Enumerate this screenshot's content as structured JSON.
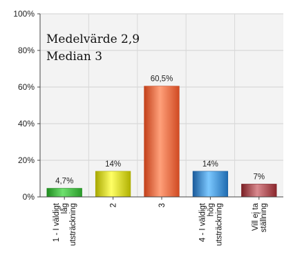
{
  "chart_data": {
    "type": "bar",
    "title": "",
    "xlabel": "",
    "ylabel": "",
    "ylim": [
      0,
      100
    ],
    "yticks": [
      "0%",
      "20%",
      "40%",
      "60%",
      "80%",
      "100%"
    ],
    "grid": true,
    "annotations": [
      "Medelvärde 2,9",
      "Median 3"
    ],
    "categories": [
      [
        "1 - I väldigt",
        "låg",
        "utsträckning"
      ],
      [
        "2"
      ],
      [
        "3"
      ],
      [
        "4 - I väldigt",
        "hög",
        "utsträckning"
      ],
      [
        "Vill ej ta",
        "ställning"
      ]
    ],
    "values": [
      4.7,
      14,
      60.5,
      14,
      7
    ],
    "value_labels": [
      "4,7%",
      "14%",
      "60,5%",
      "14%",
      "7%"
    ],
    "colors": [
      [
        "#1e8a1e",
        "#6fe06f",
        "#2a9a2a"
      ],
      [
        "#a8a800",
        "#ffff66",
        "#b0b000"
      ],
      [
        "#c2401a",
        "#ffa07a",
        "#d04a22"
      ],
      [
        "#1a5a9a",
        "#7cc8ff",
        "#1f6bb0"
      ],
      [
        "#7a1f24",
        "#d98a8f",
        "#8a262c"
      ]
    ]
  }
}
